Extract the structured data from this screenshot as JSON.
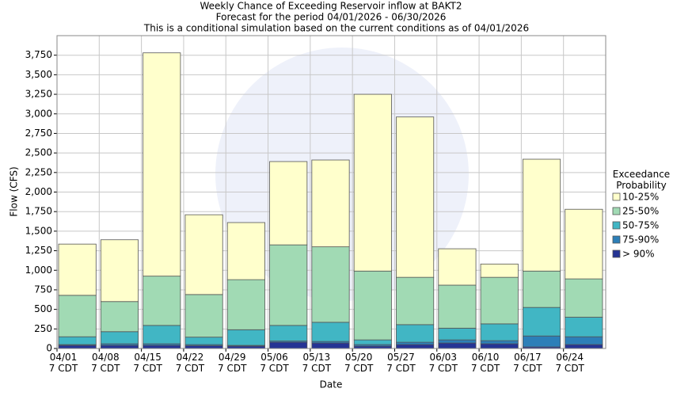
{
  "chart_data": {
    "type": "stacked-bar",
    "title": "Weekly Chance of Exceeding Reservoir inflow at BAKT2",
    "subtitle": "Forecast for the period 04/01/2026 - 06/30/2026",
    "note": "This is a conditional simulation based on the current conditions as of 04/01/2026",
    "x_label": "Date",
    "y_label": "Flow (CFS)",
    "legend_title": "Exceedance\nProbability",
    "categories": [
      "04/01\n7 CDT",
      "04/08\n7 CDT",
      "04/15\n7 CDT",
      "04/22\n7 CDT",
      "04/29\n7 CDT",
      "05/06\n7 CDT",
      "05/13\n7 CDT",
      "05/20\n7 CDT",
      "05/27\n7 CDT",
      "06/03\n7 CDT",
      "06/10\n7 CDT",
      "06/17\n7 CDT",
      "06/24\n7 CDT"
    ],
    "series": [
      {
        "name": "> 90%",
        "color": "#253494",
        "values": [
          40,
          40,
          40,
          35,
          30,
          80,
          70,
          30,
          50,
          70,
          60,
          20,
          50
        ]
      },
      {
        "name": "75-90%",
        "color": "#2c7fb8",
        "values": [
          10,
          20,
          20,
          15,
          10,
          15,
          20,
          20,
          30,
          40,
          40,
          140,
          100
        ]
      },
      {
        "name": "50-75%",
        "color": "#41b6c4",
        "values": [
          100,
          155,
          235,
          95,
          200,
          200,
          245,
          60,
          225,
          150,
          215,
          365,
          250
        ]
      },
      {
        "name": "25-50%",
        "color": "#a1dab4",
        "values": [
          530,
          385,
          630,
          545,
          640,
          1030,
          965,
          880,
          605,
          550,
          595,
          465,
          490
        ]
      },
      {
        "name": "10-25%",
        "color": "#ffffcc",
        "values": [
          655,
          790,
          2855,
          1020,
          730,
          1065,
          1110,
          2260,
          2050,
          465,
          170,
          1430,
          890
        ]
      }
    ],
    "ylim": [
      0,
      4000
    ],
    "yticks": [
      0,
      250,
      500,
      750,
      {
        "value": 1000,
        "label": "1,000"
      },
      {
        "value": 1250,
        "label": "1,250"
      },
      {
        "value": 1500,
        "label": "1,500"
      },
      {
        "value": 1750,
        "label": "1,750"
      },
      {
        "value": 2000,
        "label": "2,000"
      },
      {
        "value": 2250,
        "label": "2,250"
      },
      {
        "value": 2500,
        "label": "2,500"
      },
      {
        "value": 2750,
        "label": "2,750"
      },
      {
        "value": 3000,
        "label": "3,000"
      },
      {
        "value": 3250,
        "label": "3,250"
      },
      {
        "value": 3500,
        "label": "3,500"
      },
      {
        "value": 3750,
        "label": "3,750"
      }
    ],
    "grid": true
  }
}
